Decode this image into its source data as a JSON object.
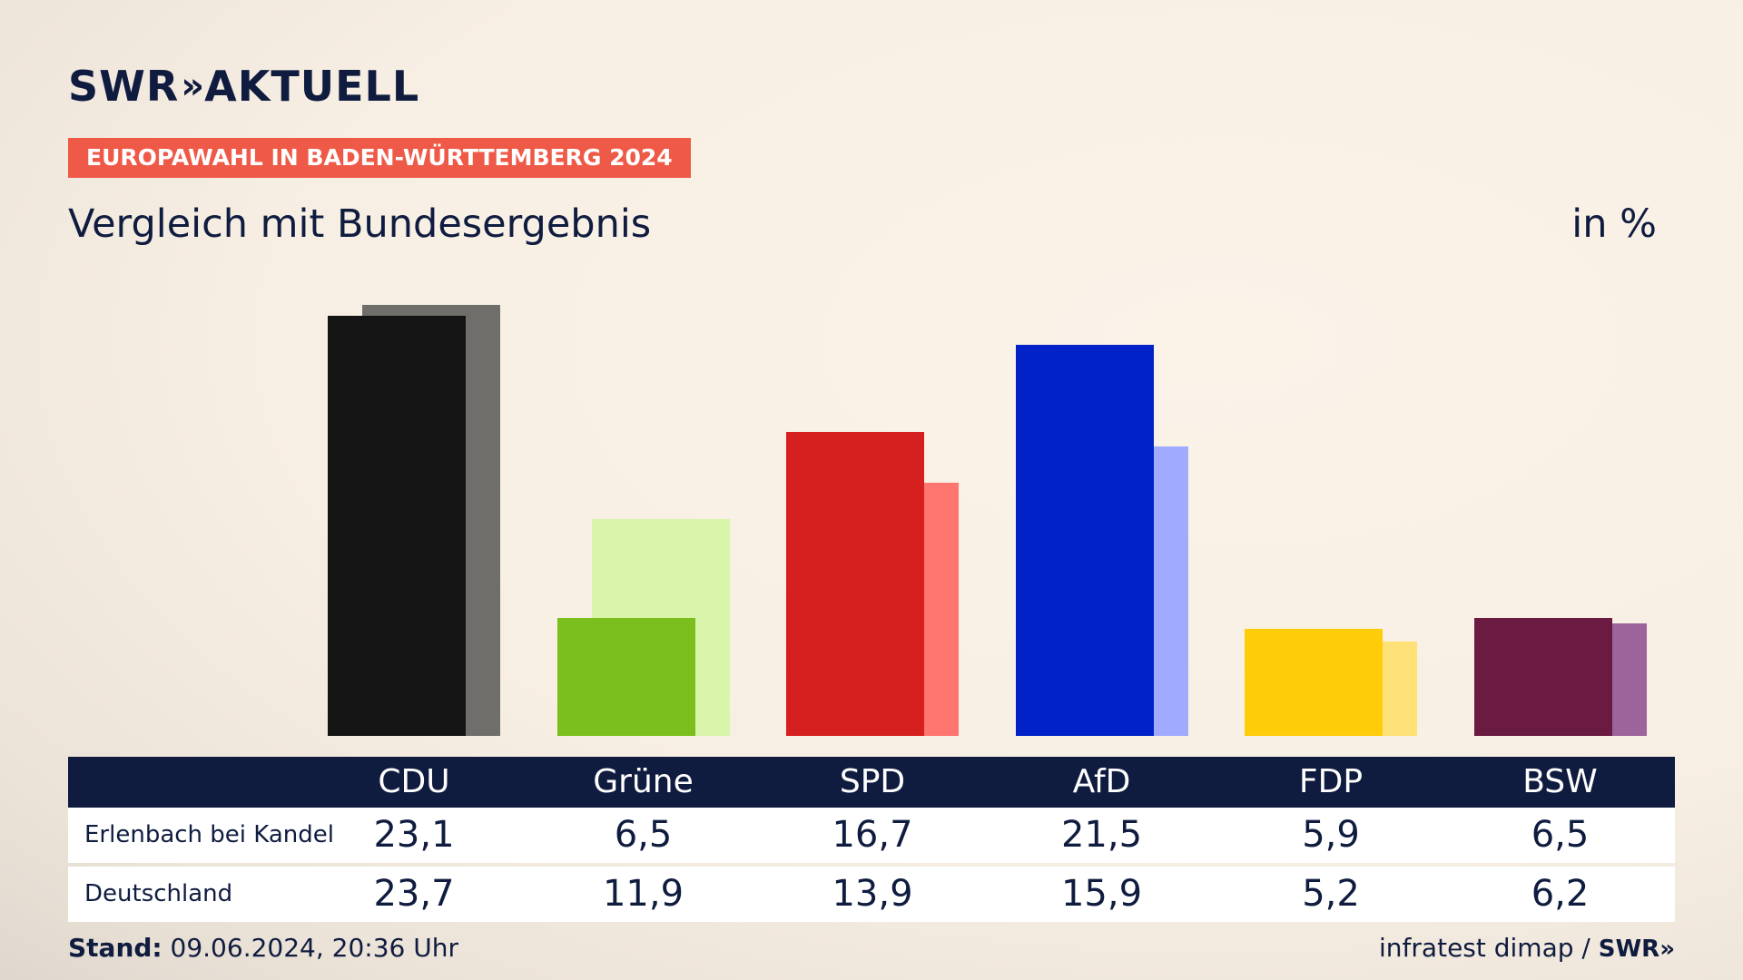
{
  "header": {
    "logo_text": "SWR",
    "logo_chevrons": "»",
    "logo_suffix": "AKTUELL",
    "tag": "EUROPAWAHL IN BADEN-WÜRTTEMBERG 2024",
    "title": "Vergleich mit Bundesergebnis",
    "unit": "in %"
  },
  "chart_data": {
    "type": "bar",
    "categories": [
      "CDU",
      "Grüne",
      "SPD",
      "AfD",
      "FDP",
      "BSW"
    ],
    "series": [
      {
        "name": "Erlenbach bei Kandel",
        "values": [
          23.1,
          6.5,
          16.7,
          21.5,
          5.9,
          6.5
        ],
        "labels": [
          "23,1",
          "6,5",
          "16,7",
          "21,5",
          "5,9",
          "6,5"
        ],
        "colors": [
          "#141414",
          "#7abf1d",
          "#d61f1f",
          "#0022c8",
          "#ffcc0a",
          "#6b1a42"
        ]
      },
      {
        "name": "Deutschland",
        "values": [
          23.7,
          11.9,
          13.9,
          15.9,
          5.2,
          6.2
        ],
        "labels": [
          "23,7",
          "11,9",
          "13,9",
          "15,9",
          "5,2",
          "6,2"
        ],
        "colors": [
          "#706e6b",
          "#d8f5aa",
          "#ff7570",
          "#a0abff",
          "#ffe277",
          "#9c649b"
        ]
      }
    ],
    "ylim": [
      0,
      23.7
    ]
  },
  "footer": {
    "stand_label": "Stand:",
    "stand_value": "09.06.2024, 20:36 Uhr",
    "source": "infratest dimap /",
    "source_logo": "SWR»"
  }
}
